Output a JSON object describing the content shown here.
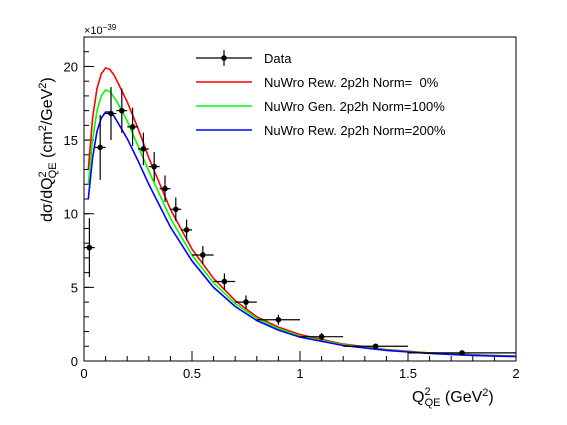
{
  "chart_data": {
    "type": "line",
    "exponent_label": "×10",
    "exponent_power": "−39",
    "xlim": [
      0,
      2
    ],
    "ylim": [
      0,
      22
    ],
    "x_ticks": [
      "0",
      "0.5",
      "1",
      "1.5",
      "2"
    ],
    "y_ticks": [
      "0",
      "5",
      "10",
      "15",
      "20"
    ],
    "xlabel": {
      "base": "Q",
      "sup": "2",
      "sub": "QE",
      "rest": " (GeV",
      "rest_sup": "2",
      "rest_end": ")"
    },
    "ylabel": {
      "pre": "dσ/dQ",
      "sup": "2",
      "sub": "QE",
      "rest": " (cm",
      "rest_sup": "2",
      "mid": "/GeV",
      "mid_sup": "2",
      "end": ")"
    },
    "legend": {
      "position": "top-right",
      "entries": [
        {
          "label": "Data",
          "kind": "marker",
          "color": "#000000"
        },
        {
          "label": "NuWro Rew. 2p2h Norm=  0%",
          "kind": "line",
          "color": "#ff0000"
        },
        {
          "label": "NuWro Gen. 2p2h Norm=100%",
          "kind": "line",
          "color": "#00ff00"
        },
        {
          "label": "NuWro Rew. 2p2h Norm=200%",
          "kind": "line",
          "color": "#0000ff"
        }
      ]
    },
    "data_points": [
      {
        "x": 0.025,
        "xerr": 0.025,
        "y": 7.7,
        "yerr": 2.0
      },
      {
        "x": 0.075,
        "xerr": 0.025,
        "y": 14.5,
        "yerr": 2.2
      },
      {
        "x": 0.125,
        "xerr": 0.025,
        "y": 16.8,
        "yerr": 1.8
      },
      {
        "x": 0.175,
        "xerr": 0.025,
        "y": 17.0,
        "yerr": 1.5
      },
      {
        "x": 0.225,
        "xerr": 0.025,
        "y": 15.9,
        "yerr": 1.3
      },
      {
        "x": 0.275,
        "xerr": 0.025,
        "y": 14.4,
        "yerr": 1.1
      },
      {
        "x": 0.325,
        "xerr": 0.025,
        "y": 13.2,
        "yerr": 1.0
      },
      {
        "x": 0.375,
        "xerr": 0.025,
        "y": 11.7,
        "yerr": 0.9
      },
      {
        "x": 0.425,
        "xerr": 0.025,
        "y": 10.3,
        "yerr": 0.8
      },
      {
        "x": 0.475,
        "xerr": 0.025,
        "y": 8.9,
        "yerr": 0.7
      },
      {
        "x": 0.55,
        "xerr": 0.05,
        "y": 7.2,
        "yerr": 0.6
      },
      {
        "x": 0.65,
        "xerr": 0.05,
        "y": 5.4,
        "yerr": 0.55
      },
      {
        "x": 0.75,
        "xerr": 0.05,
        "y": 4.0,
        "yerr": 0.45
      },
      {
        "x": 0.9,
        "xerr": 0.1,
        "y": 2.8,
        "yerr": 0.35
      },
      {
        "x": 1.1,
        "xerr": 0.1,
        "y": 1.65,
        "yerr": 0.25
      },
      {
        "x": 1.35,
        "xerr": 0.15,
        "y": 1.0,
        "yerr": 0.15
      },
      {
        "x": 1.75,
        "xerr": 0.25,
        "y": 0.55,
        "yerr": 0.12
      }
    ],
    "series": [
      {
        "color": "#ff0000",
        "x": [
          0.02,
          0.04,
          0.06,
          0.08,
          0.1,
          0.12,
          0.14,
          0.16,
          0.2,
          0.25,
          0.3,
          0.4,
          0.5,
          0.6,
          0.7,
          0.8,
          0.9,
          1.0,
          1.2,
          1.4,
          1.6,
          1.8,
          2.0
        ],
        "y": [
          13.0,
          16.5,
          18.5,
          19.5,
          19.9,
          19.8,
          19.4,
          18.8,
          17.6,
          15.8,
          13.8,
          10.3,
          7.6,
          5.6,
          4.1,
          3.0,
          2.3,
          1.8,
          1.15,
          0.78,
          0.55,
          0.42,
          0.33
        ]
      },
      {
        "color": "#00ff00",
        "x": [
          0.02,
          0.04,
          0.06,
          0.08,
          0.1,
          0.12,
          0.14,
          0.16,
          0.2,
          0.25,
          0.3,
          0.4,
          0.5,
          0.6,
          0.7,
          0.8,
          0.9,
          1.0,
          1.2,
          1.4,
          1.6,
          1.8,
          2.0
        ],
        "y": [
          12.0,
          15.0,
          17.0,
          18.0,
          18.4,
          18.3,
          17.9,
          17.4,
          16.3,
          14.6,
          12.9,
          9.7,
          7.2,
          5.3,
          3.9,
          2.9,
          2.2,
          1.7,
          1.1,
          0.75,
          0.53,
          0.4,
          0.31
        ]
      },
      {
        "color": "#0000ff",
        "x": [
          0.02,
          0.04,
          0.06,
          0.08,
          0.1,
          0.12,
          0.14,
          0.16,
          0.2,
          0.25,
          0.3,
          0.4,
          0.5,
          0.6,
          0.7,
          0.8,
          0.9,
          1.0,
          1.2,
          1.4,
          1.6,
          1.8,
          2.0
        ],
        "y": [
          11.0,
          13.8,
          15.6,
          16.5,
          16.9,
          16.9,
          16.6,
          16.1,
          15.1,
          13.6,
          12.0,
          9.1,
          6.8,
          5.0,
          3.7,
          2.75,
          2.1,
          1.62,
          1.05,
          0.72,
          0.51,
          0.38,
          0.3
        ]
      }
    ]
  }
}
